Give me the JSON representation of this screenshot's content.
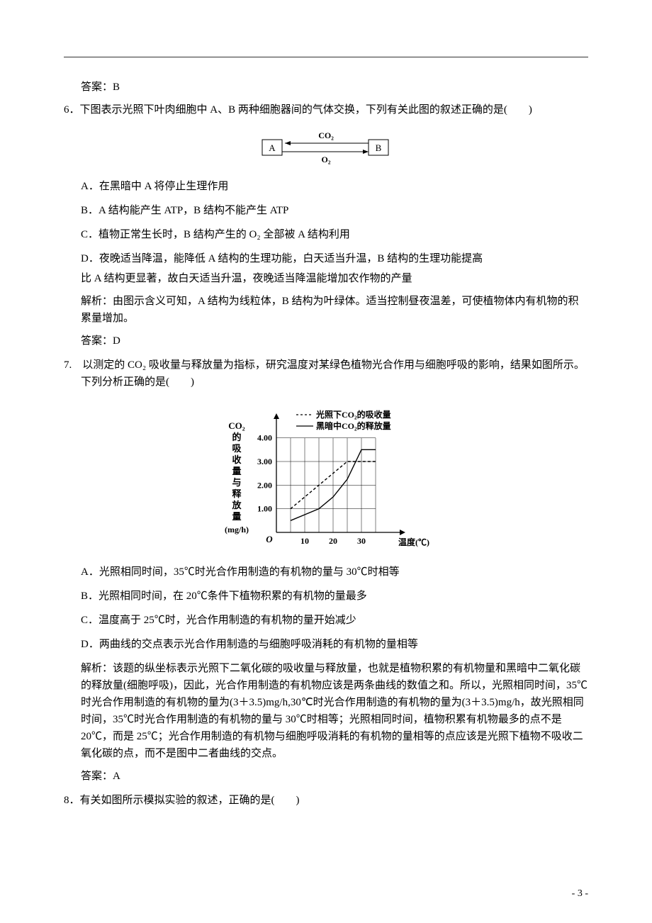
{
  "page": {
    "watermark": "",
    "number_label": "- 3 -"
  },
  "q5": {
    "answer": "答案：B"
  },
  "q6": {
    "stem": "6．下图表示光照下叶肉细胞中 A、B 两种细胞器间的气体交换，下列有关此图的叙述正确的是(　　)",
    "diagram": {
      "box_a": "A",
      "box_b": "B",
      "top_label": "CO₂",
      "bottom_label": "O₂",
      "box_stroke": "#000000",
      "line_stroke": "#000000",
      "text_color": "#000000",
      "bg": "#ffffff"
    },
    "optA": "A．在黑暗中 A 将停止生理作用",
    "optB": "B．A 结构能产生 ATP，B 结构不能产生 ATP",
    "optC": "C．植物正常生长时，B 结构产生的 O₂ 全部被 A 结构利用",
    "optD1": "D．夜晚适当降温，能降低 A 结构的生理功能，白天适当升温，B 结构的生理功能提高",
    "optD2": "比 A 结构更显著，故白天适当升温，夜晚适当降温能增加农作物的产量",
    "explain": "解析：由图示含义可知，A 结构为线粒体，B 结构为叶绿体。适当控制昼夜温差，可使植物体内有机物的积累量增加。",
    "answer": "答案：D"
  },
  "q7": {
    "stem": "7.　以测定的 CO₂ 吸收量与释放量为指标，研究温度对某绿色植物光合作用与细胞呼吸的影响，结果如图所示。下列分析正确的是(　　)",
    "chart": {
      "type": "line",
      "y_label_lines": [
        "CO₂",
        "的",
        "吸",
        "收",
        "量",
        "与",
        "释",
        "放",
        "量"
      ],
      "y_unit": "(mg/h)",
      "x_label": "温度(℃)",
      "origin_label": "O",
      "x_ticks": [
        10,
        20,
        30
      ],
      "y_ticks": [
        1.0,
        2.0,
        3.0,
        4.0
      ],
      "y_tick_labels": [
        "1.00",
        "2.00",
        "3.00",
        "4.00"
      ],
      "xlim": [
        0,
        40
      ],
      "ylim": [
        0,
        4.5
      ],
      "legend": [
        {
          "label": "光照下CO₂的吸收量",
          "style": "dashed"
        },
        {
          "label": "黑暗中CO₂的释放量",
          "style": "solid"
        }
      ],
      "series": {
        "light": {
          "stroke": "#000000",
          "dash": "4,3",
          "points": [
            {
              "x": 5,
              "y": 1.0
            },
            {
              "x": 10,
              "y": 1.5
            },
            {
              "x": 15,
              "y": 2.0
            },
            {
              "x": 20,
              "y": 2.5
            },
            {
              "x": 25,
              "y": 3.0
            },
            {
              "x": 30,
              "y": 3.0
            },
            {
              "x": 35,
              "y": 3.0
            }
          ]
        },
        "dark": {
          "stroke": "#000000",
          "dash": "",
          "points": [
            {
              "x": 5,
              "y": 0.5
            },
            {
              "x": 10,
              "y": 0.75
            },
            {
              "x": 15,
              "y": 1.0
            },
            {
              "x": 20,
              "y": 1.5
            },
            {
              "x": 25,
              "y": 2.25
            },
            {
              "x": 30,
              "y": 3.5
            },
            {
              "x": 35,
              "y": 3.5
            }
          ]
        }
      },
      "grid_color": "#000000",
      "axis_color": "#000000",
      "text_color": "#000000",
      "bg": "#ffffff",
      "font_size": 12,
      "font_weight": "bold"
    },
    "optA": "A．光照相同时间，35℃时光合作用制造的有机物的量与 30℃时相等",
    "optB": "B．光照相同时间，在 20℃条件下植物积累的有机物的量最多",
    "optC": "C．温度高于 25℃时，光合作用制造的有机物的量开始减少",
    "optD": "D．两曲线的交点表示光合作用制造的与细胞呼吸消耗的有机物的量相等",
    "explain": "解析：该题的纵坐标表示光照下二氧化碳的吸收量与释放量，也就是植物积累的有机物量和黑暗中二氧化碳的释放量(细胞呼吸)，因此，光合作用制造的有机物应该是两条曲线的数值之和。所以，光照相同时间，35℃时光合作用制造的有机物的量为(3＋3.5)mg/h,30℃时光合作用制造的有机物的量为(3＋3.5)mg/h，故光照相同时间，35℃时光合作用制造的有机物的量与 30℃时相等；光照相同时间，植物积累有机物最多的点不是 20℃，而是 25℃；光合作用制造的有机物与细胞呼吸消耗的有机物的量相等的点应该是光照下植物不吸收二氧化碳的点，而不是图中二者曲线的交点。",
    "answer": "答案：A"
  },
  "q8": {
    "stem": "8．有关如图所示模拟实验的叙述，正确的是(　　)"
  }
}
